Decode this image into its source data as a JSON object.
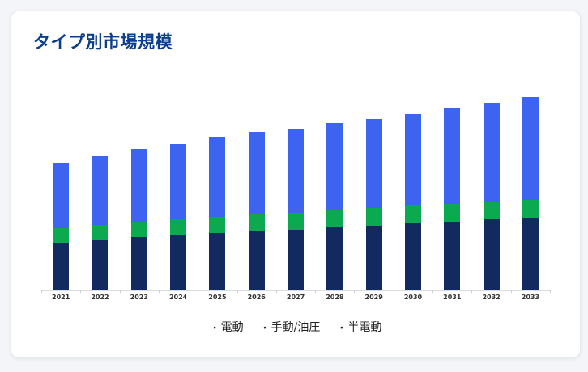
{
  "card": {
    "title": "タイプ別市場規模",
    "title_color": "#0c3e8e",
    "background": "#ffffff"
  },
  "page": {
    "background": "#f3f5f8"
  },
  "legend": {
    "bullet": "・",
    "text_color": "#222222",
    "items": [
      {
        "label": "電動"
      },
      {
        "label": "手動/油圧"
      },
      {
        "label": "半電動"
      }
    ]
  },
  "chart_data": {
    "type": "bar",
    "stacked": true,
    "title": "タイプ別市場規模",
    "xlabel": "",
    "ylabel": "",
    "y_axis_visible": false,
    "grid": false,
    "legend_position": "bottom",
    "value_unit": "relative-units (no y-axis scale shown in chart)",
    "ylim": [
      0,
      250
    ],
    "categories": [
      "2021",
      "2022",
      "2023",
      "2024",
      "2025",
      "2026",
      "2027",
      "2028",
      "2029",
      "2030",
      "2031",
      "2032",
      "2033"
    ],
    "series": [
      {
        "name": "電動",
        "color": "#122a60",
        "values": [
          59,
          62,
          66,
          68,
          71,
          73,
          74,
          78,
          80,
          83,
          85,
          88,
          90
        ]
      },
      {
        "name": "手動/油圧",
        "color": "#0caa50",
        "values": [
          18,
          19,
          19,
          20,
          20,
          21,
          22,
          21,
          22,
          22,
          22,
          21,
          22
        ]
      },
      {
        "name": "半電動",
        "color": "#3c64f0",
        "values": [
          80,
          85,
          90,
          93,
          99,
          102,
          103,
          108,
          110,
          113,
          118,
          123,
          127
        ]
      }
    ],
    "totals": [
      157,
      166,
      175,
      181,
      190,
      196,
      199,
      207,
      212,
      218,
      225,
      232,
      239
    ],
    "axis_line_color": "#d8dde3",
    "tick_color": "#cccccc",
    "x_label_color": "#333333"
  }
}
